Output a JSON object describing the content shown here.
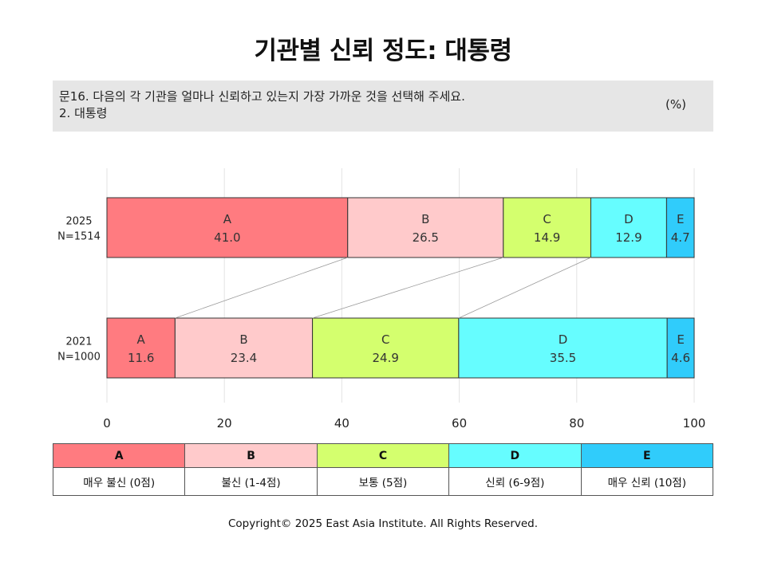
{
  "title": "기관별 신뢰 정도: 대통령",
  "question": {
    "line1": "문16. 다음의 각 기관을 얼마나 신뢰하고 있는지 가장 가까운 것을 선택해 주세요.",
    "line2": "2. 대통령",
    "unit": "(%)"
  },
  "chart_data": {
    "type": "bar",
    "orientation": "horizontal",
    "stacked": true,
    "categories": [
      {
        "year": "2025",
        "n": "N=1514"
      },
      {
        "year": "2021",
        "n": "N=1000"
      }
    ],
    "series": [
      {
        "name": "A",
        "values": [
          41.0,
          11.6
        ]
      },
      {
        "name": "B",
        "values": [
          26.5,
          23.4
        ]
      },
      {
        "name": "C",
        "values": [
          14.9,
          24.9
        ]
      },
      {
        "name": "D",
        "values": [
          12.9,
          35.5
        ]
      },
      {
        "name": "E",
        "values": [
          4.7,
          4.6
        ]
      }
    ],
    "xlim": [
      0,
      100
    ],
    "xticks": [
      0,
      20,
      40,
      60,
      80,
      100
    ],
    "grid": true,
    "legend_position": "bottom"
  },
  "colors": {
    "A": "#ff7b80",
    "B": "#ffcacb",
    "C": "#d4ff6e",
    "D": "#66fdff",
    "E": "#30ccfb"
  },
  "legend": [
    {
      "key": "A",
      "label": "매우 불신 (0점)"
    },
    {
      "key": "B",
      "label": "불신 (1-4점)"
    },
    {
      "key": "C",
      "label": "보통 (5점)"
    },
    {
      "key": "D",
      "label": "신뢰 (6-9점)"
    },
    {
      "key": "E",
      "label": "매우 신뢰 (10점)"
    }
  ],
  "copyright": "Copyright© 2025 East Asia Institute. All Rights Reserved."
}
